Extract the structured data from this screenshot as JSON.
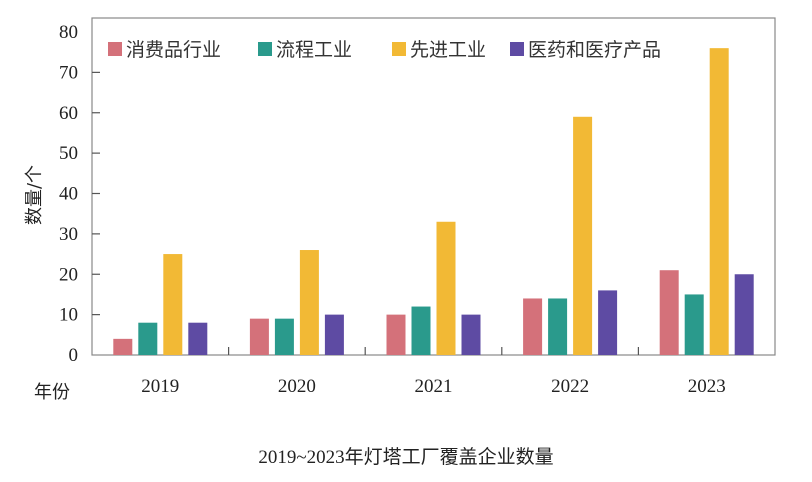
{
  "chart_data": {
    "type": "bar",
    "title": "2019~2023年灯塔工厂覆盖企业数量",
    "xlabel": "年份",
    "ylabel": "数量/个",
    "categories": [
      "2019",
      "2020",
      "2021",
      "2022",
      "2023"
    ],
    "ylim": [
      0,
      80
    ],
    "yticks": [
      0,
      10,
      20,
      30,
      40,
      50,
      60,
      70,
      80
    ],
    "grid": false,
    "legend_position": "top",
    "series": [
      {
        "name": "消费品行业",
        "color": "#d4717a",
        "values": [
          4,
          9,
          10,
          14,
          21
        ]
      },
      {
        "name": "流程工业",
        "color": "#2a9a8c",
        "values": [
          8,
          9,
          12,
          14,
          15
        ]
      },
      {
        "name": "先进工业",
        "color": "#f2b935",
        "values": [
          25,
          26,
          33,
          59,
          76
        ]
      },
      {
        "name": "医药和医疗产品",
        "color": "#5e4ba3",
        "values": [
          8,
          10,
          10,
          16,
          20
        ]
      }
    ]
  }
}
